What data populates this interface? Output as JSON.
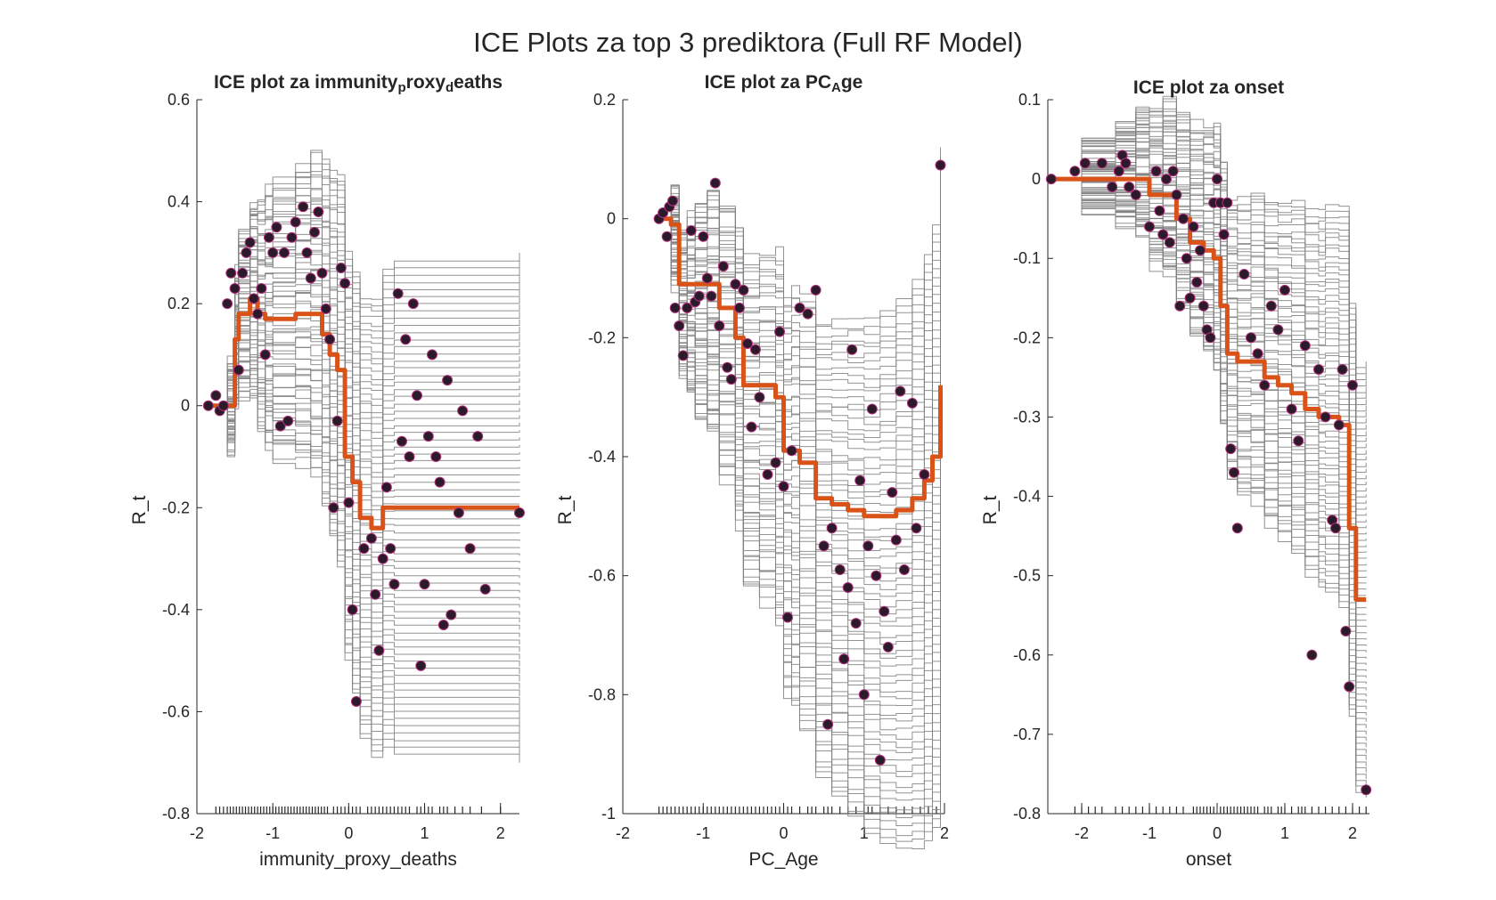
{
  "figure": {
    "title": "ICE Plots za top 3 prediktora (Full RF Model)"
  },
  "colors": {
    "ice_line": "#808080",
    "pd_line": "#D95319",
    "marker_fill": "#2B1A2A",
    "marker_edge": "#B0307A",
    "axis": "#262626"
  },
  "chart_data": [
    {
      "type": "line",
      "title_parts": [
        {
          "text": "ICE  plot  za  immunity",
          "sub": false
        },
        {
          "text": "p",
          "sub": true
        },
        {
          "text": "roxy",
          "sub": false
        },
        {
          "text": "d",
          "sub": true
        },
        {
          "text": "eaths",
          "sub": false
        }
      ],
      "xlabel": "immunity_proxy_deaths",
      "ylabel": "R_t",
      "xlim": [
        -2,
        2.25
      ],
      "ylim": [
        -0.8,
        0.6
      ],
      "xticks": [
        -2,
        -1,
        0,
        1,
        2
      ],
      "xtick_labels": [
        "-2",
        "-1",
        "0",
        "1",
        "2"
      ],
      "yticks": [
        -0.8,
        -0.6,
        -0.4,
        -0.2,
        0,
        0.2,
        0.4,
        0.6
      ],
      "ytick_labels": [
        "-0.8",
        "-0.6",
        "-0.4",
        "-0.2",
        "0",
        "0.2",
        "0.4",
        "0.6"
      ],
      "ice_x": [
        -1.85,
        -1.6,
        -1.5,
        -1.45,
        -1.3,
        -1.2,
        -1.1,
        -1.0,
        -0.7,
        -0.5,
        -0.35,
        -0.25,
        -0.15,
        -0.05,
        0.05,
        0.15,
        0.3,
        0.45,
        0.6,
        2.25
      ],
      "pd_y": [
        0.0,
        0.0,
        0.13,
        0.18,
        0.21,
        0.18,
        0.17,
        0.17,
        0.18,
        0.18,
        0.14,
        0.1,
        0.07,
        -0.1,
        -0.15,
        -0.22,
        -0.24,
        -0.2,
        -0.2,
        -0.2
      ],
      "ice_count": 70,
      "ice_final_min": -0.7,
      "ice_final_max": 0.3,
      "rug_x": [
        -1.75,
        -1.7,
        -1.65,
        -1.6,
        -1.56,
        -1.52,
        -1.48,
        -1.44,
        -1.4,
        -1.36,
        -1.32,
        -1.28,
        -1.24,
        -1.2,
        -1.16,
        -1.12,
        -1.08,
        -1.04,
        -1.0,
        -0.96,
        -0.92,
        -0.88,
        -0.84,
        -0.8,
        -0.76,
        -0.72,
        -0.68,
        -0.64,
        -0.6,
        -0.56,
        -0.52,
        -0.48,
        -0.44,
        -0.4,
        -0.36,
        -0.32,
        -0.28,
        -0.2,
        -0.15,
        -0.1,
        -0.05,
        0.0,
        0.05,
        0.1,
        0.15,
        0.25,
        0.3,
        0.35,
        0.4,
        0.45,
        0.5,
        0.55,
        0.6,
        0.65,
        0.7,
        0.75,
        0.8,
        0.9,
        0.95,
        1.0,
        1.05,
        1.1,
        1.2,
        1.25,
        1.3,
        1.4,
        1.5,
        1.6,
        1.75,
        2.0
      ],
      "points": [
        [
          -1.85,
          0.0
        ],
        [
          -1.75,
          0.02
        ],
        [
          -1.7,
          -0.01
        ],
        [
          -1.65,
          0.0
        ],
        [
          -1.6,
          0.2
        ],
        [
          -1.55,
          0.26
        ],
        [
          -1.5,
          0.23
        ],
        [
          -1.45,
          0.07
        ],
        [
          -1.4,
          0.26
        ],
        [
          -1.35,
          0.3
        ],
        [
          -1.3,
          0.32
        ],
        [
          -1.25,
          0.21
        ],
        [
          -1.2,
          0.18
        ],
        [
          -1.15,
          0.23
        ],
        [
          -1.1,
          0.1
        ],
        [
          -1.05,
          0.33
        ],
        [
          -1.0,
          0.3
        ],
        [
          -0.95,
          0.35
        ],
        [
          -0.9,
          -0.04
        ],
        [
          -0.85,
          0.3
        ],
        [
          -0.8,
          -0.03
        ],
        [
          -0.75,
          0.33
        ],
        [
          -0.7,
          0.36
        ],
        [
          -0.6,
          0.39
        ],
        [
          -0.55,
          0.3
        ],
        [
          -0.5,
          0.25
        ],
        [
          -0.45,
          0.34
        ],
        [
          -0.4,
          0.38
        ],
        [
          -0.35,
          0.26
        ],
        [
          -0.3,
          0.19
        ],
        [
          -0.25,
          0.13
        ],
        [
          -0.2,
          -0.2
        ],
        [
          -0.15,
          -0.03
        ],
        [
          -0.1,
          0.27
        ],
        [
          -0.05,
          0.24
        ],
        [
          0.0,
          -0.19
        ],
        [
          0.05,
          -0.4
        ],
        [
          0.1,
          -0.58
        ],
        [
          0.2,
          -0.28
        ],
        [
          0.3,
          -0.26
        ],
        [
          0.35,
          -0.37
        ],
        [
          0.4,
          -0.48
        ],
        [
          0.45,
          -0.3
        ],
        [
          0.5,
          -0.16
        ],
        [
          0.55,
          -0.28
        ],
        [
          0.6,
          -0.35
        ],
        [
          0.65,
          0.22
        ],
        [
          0.7,
          -0.07
        ],
        [
          0.75,
          0.13
        ],
        [
          0.8,
          -0.1
        ],
        [
          0.85,
          0.2
        ],
        [
          0.9,
          0.02
        ],
        [
          0.95,
          -0.51
        ],
        [
          1.0,
          -0.35
        ],
        [
          1.05,
          -0.06
        ],
        [
          1.1,
          0.1
        ],
        [
          1.15,
          -0.1
        ],
        [
          1.2,
          -0.15
        ],
        [
          1.25,
          -0.43
        ],
        [
          1.3,
          0.05
        ],
        [
          1.35,
          -0.41
        ],
        [
          1.45,
          -0.21
        ],
        [
          1.5,
          -0.01
        ],
        [
          1.6,
          -0.28
        ],
        [
          1.7,
          -0.06
        ],
        [
          1.8,
          -0.36
        ],
        [
          2.25,
          -0.21
        ]
      ]
    },
    {
      "type": "line",
      "title_parts": [
        {
          "text": "ICE  plot  za  PC",
          "sub": false
        },
        {
          "text": "A",
          "sub": true
        },
        {
          "text": "ge",
          "sub": false
        }
      ],
      "xlabel": "PC_Age",
      "ylabel": "R_t",
      "xlim": [
        -2,
        2
      ],
      "ylim": [
        -1,
        0.2
      ],
      "xticks": [
        -2,
        -1,
        0,
        1,
        2
      ],
      "xtick_labels": [
        "-2",
        "-1",
        "0",
        "1",
        "2"
      ],
      "yticks": [
        -1,
        -0.8,
        -0.6,
        -0.4,
        -0.2,
        0,
        0.2
      ],
      "ytick_labels": [
        "-1",
        "-0.8",
        "-0.6",
        "-0.4",
        "-0.2",
        "0",
        "0.2"
      ],
      "ice_x": [
        -1.55,
        -1.4,
        -1.3,
        -1.2,
        -1.1,
        -0.95,
        -0.8,
        -0.6,
        -0.5,
        -0.3,
        -0.1,
        0.0,
        0.1,
        0.2,
        0.4,
        0.6,
        0.8,
        1.0,
        1.2,
        1.4,
        1.6,
        1.75,
        1.85,
        1.95
      ],
      "pd_y": [
        0.0,
        -0.01,
        -0.11,
        -0.11,
        -0.11,
        -0.11,
        -0.15,
        -0.2,
        -0.28,
        -0.28,
        -0.3,
        -0.39,
        -0.39,
        -0.41,
        -0.47,
        -0.48,
        -0.49,
        -0.5,
        -0.5,
        -0.49,
        -0.47,
        -0.44,
        -0.4,
        -0.28
      ],
      "ice_count": 70,
      "ice_final_min": -0.92,
      "ice_final_max": 0.12,
      "rug_x": [
        -1.55,
        -1.5,
        -1.45,
        -1.4,
        -1.35,
        -1.3,
        -1.25,
        -1.2,
        -1.15,
        -1.1,
        -1.05,
        -1.0,
        -0.95,
        -0.9,
        -0.85,
        -0.8,
        -0.75,
        -0.7,
        -0.65,
        -0.6,
        -0.55,
        -0.5,
        -0.45,
        -0.4,
        -0.35,
        -0.3,
        -0.25,
        -0.2,
        -0.15,
        -0.1,
        -0.05,
        0.0,
        0.05,
        0.1,
        0.2,
        0.3,
        0.35,
        0.4,
        0.5,
        0.55,
        0.6,
        0.7,
        0.8,
        0.9,
        1.0,
        1.05,
        1.1,
        1.2,
        1.3,
        1.4,
        1.5,
        1.6,
        1.7,
        1.8,
        1.9
      ],
      "points": [
        [
          -1.55,
          0.0
        ],
        [
          -1.5,
          0.01
        ],
        [
          -1.45,
          -0.03
        ],
        [
          -1.42,
          0.02
        ],
        [
          -1.38,
          0.03
        ],
        [
          -1.35,
          -0.15
        ],
        [
          -1.3,
          -0.18
        ],
        [
          -1.25,
          -0.23
        ],
        [
          -1.2,
          -0.15
        ],
        [
          -1.15,
          -0.02
        ],
        [
          -1.1,
          -0.14
        ],
        [
          -1.05,
          -0.13
        ],
        [
          -1.0,
          -0.03
        ],
        [
          -0.95,
          -0.1
        ],
        [
          -0.9,
          -0.13
        ],
        [
          -0.85,
          0.06
        ],
        [
          -0.8,
          -0.18
        ],
        [
          -0.75,
          -0.08
        ],
        [
          -0.7,
          -0.25
        ],
        [
          -0.65,
          -0.27
        ],
        [
          -0.6,
          -0.11
        ],
        [
          -0.55,
          -0.15
        ],
        [
          -0.5,
          -0.12
        ],
        [
          -0.45,
          -0.21
        ],
        [
          -0.4,
          -0.35
        ],
        [
          -0.35,
          -0.22
        ],
        [
          -0.3,
          -0.3
        ],
        [
          -0.2,
          -0.43
        ],
        [
          -0.1,
          -0.41
        ],
        [
          -0.05,
          -0.19
        ],
        [
          0.0,
          -0.45
        ],
        [
          0.05,
          -0.67
        ],
        [
          0.1,
          -0.39
        ],
        [
          0.2,
          -0.15
        ],
        [
          0.3,
          -0.16
        ],
        [
          0.4,
          -0.12
        ],
        [
          0.5,
          -0.55
        ],
        [
          0.55,
          -0.85
        ],
        [
          0.6,
          -0.52
        ],
        [
          0.7,
          -0.59
        ],
        [
          0.75,
          -0.74
        ],
        [
          0.8,
          -0.62
        ],
        [
          0.85,
          -0.22
        ],
        [
          0.9,
          -0.68
        ],
        [
          0.95,
          -0.44
        ],
        [
          1.0,
          -0.8
        ],
        [
          1.05,
          -0.55
        ],
        [
          1.1,
          -0.32
        ],
        [
          1.15,
          -0.6
        ],
        [
          1.2,
          -0.91
        ],
        [
          1.25,
          -0.66
        ],
        [
          1.3,
          -0.72
        ],
        [
          1.35,
          -0.46
        ],
        [
          1.4,
          -0.54
        ],
        [
          1.45,
          -0.29
        ],
        [
          1.5,
          -0.59
        ],
        [
          1.6,
          -0.31
        ],
        [
          1.65,
          -0.52
        ],
        [
          1.75,
          -0.43
        ],
        [
          1.95,
          0.09
        ]
      ]
    },
    {
      "type": "line",
      "title_parts": [
        {
          "text": "ICE plot za onset",
          "sub": false
        }
      ],
      "xlabel": "onset",
      "ylabel": "R_t",
      "xlim": [
        -2.5,
        2.25
      ],
      "ylim": [
        -0.8,
        0.1
      ],
      "xticks": [
        -2,
        -1,
        0,
        1,
        2
      ],
      "xtick_labels": [
        "-2",
        "-1",
        "0",
        "1",
        "2"
      ],
      "yticks": [
        -0.8,
        -0.7,
        -0.6,
        -0.5,
        -0.4,
        -0.3,
        -0.2,
        -0.1,
        0,
        0.1
      ],
      "ytick_labels": [
        "-0.8",
        "-0.7",
        "-0.6",
        "-0.5",
        "-0.4",
        "-0.3",
        "-0.2",
        "-0.1",
        "0",
        "0.1"
      ],
      "ice_x": [
        -2.45,
        -2.0,
        -1.5,
        -1.2,
        -1.0,
        -0.8,
        -0.6,
        -0.4,
        -0.2,
        -0.05,
        0.05,
        0.15,
        0.3,
        0.5,
        0.7,
        0.9,
        1.1,
        1.3,
        1.5,
        1.6,
        1.8,
        1.95,
        2.05,
        2.2
      ],
      "pd_y": [
        0.0,
        0.0,
        0.0,
        0.0,
        -0.02,
        -0.02,
        -0.05,
        -0.08,
        -0.09,
        -0.1,
        -0.16,
        -0.22,
        -0.23,
        -0.23,
        -0.25,
        -0.26,
        -0.27,
        -0.29,
        -0.3,
        -0.3,
        -0.31,
        -0.44,
        -0.53,
        -0.53
      ],
      "ice_count": 70,
      "ice_final_min": -0.78,
      "ice_final_max": -0.23,
      "rug_x": [
        -2.1,
        -2.0,
        -1.9,
        -1.8,
        -1.7,
        -1.5,
        -1.4,
        -1.3,
        -1.2,
        -1.1,
        -1.0,
        -0.9,
        -0.8,
        -0.7,
        -0.6,
        -0.5,
        -0.35,
        -0.3,
        -0.25,
        -0.2,
        -0.15,
        -0.1,
        -0.05,
        0.05,
        0.1,
        0.15,
        0.2,
        0.25,
        0.3,
        0.35,
        0.4,
        0.45,
        0.5,
        0.55,
        0.6,
        0.7,
        0.75,
        0.8,
        0.9,
        0.95,
        1.0,
        1.1,
        1.2,
        1.25,
        1.3,
        1.4,
        1.5,
        1.6,
        1.7,
        1.8,
        1.9,
        2.0,
        2.1,
        2.2
      ],
      "points": [
        [
          -2.45,
          0.0
        ],
        [
          -2.1,
          0.01
        ],
        [
          -1.95,
          0.02
        ],
        [
          -1.7,
          0.02
        ],
        [
          -1.55,
          -0.01
        ],
        [
          -1.45,
          0.01
        ],
        [
          -1.4,
          0.03
        ],
        [
          -1.35,
          0.02
        ],
        [
          -1.3,
          -0.01
        ],
        [
          -1.2,
          -0.02
        ],
        [
          -1.0,
          -0.06
        ],
        [
          -0.9,
          0.01
        ],
        [
          -0.85,
          -0.04
        ],
        [
          -0.8,
          -0.07
        ],
        [
          -0.75,
          0.0
        ],
        [
          -0.7,
          -0.08
        ],
        [
          -0.65,
          0.01
        ],
        [
          -0.6,
          -0.02
        ],
        [
          -0.55,
          -0.16
        ],
        [
          -0.5,
          -0.05
        ],
        [
          -0.45,
          -0.1
        ],
        [
          -0.4,
          -0.15
        ],
        [
          -0.35,
          -0.06
        ],
        [
          -0.3,
          -0.13
        ],
        [
          -0.25,
          -0.09
        ],
        [
          -0.2,
          -0.16
        ],
        [
          -0.15,
          -0.19
        ],
        [
          -0.1,
          -0.2
        ],
        [
          -0.05,
          -0.03
        ],
        [
          0.0,
          0.0
        ],
        [
          0.05,
          -0.03
        ],
        [
          0.1,
          -0.07
        ],
        [
          0.15,
          -0.03
        ],
        [
          0.2,
          -0.34
        ],
        [
          0.25,
          -0.37
        ],
        [
          0.3,
          -0.44
        ],
        [
          0.4,
          -0.12
        ],
        [
          0.5,
          -0.2
        ],
        [
          0.6,
          -0.22
        ],
        [
          0.7,
          -0.26
        ],
        [
          0.8,
          -0.16
        ],
        [
          0.9,
          -0.19
        ],
        [
          1.0,
          -0.14
        ],
        [
          1.1,
          -0.29
        ],
        [
          1.2,
          -0.33
        ],
        [
          1.3,
          -0.21
        ],
        [
          1.4,
          -0.6
        ],
        [
          1.5,
          -0.24
        ],
        [
          1.6,
          -0.3
        ],
        [
          1.7,
          -0.43
        ],
        [
          1.75,
          -0.44
        ],
        [
          1.8,
          -0.31
        ],
        [
          1.85,
          -0.24
        ],
        [
          1.9,
          -0.57
        ],
        [
          1.95,
          -0.64
        ],
        [
          2.0,
          -0.26
        ],
        [
          2.2,
          -0.77
        ]
      ]
    }
  ]
}
